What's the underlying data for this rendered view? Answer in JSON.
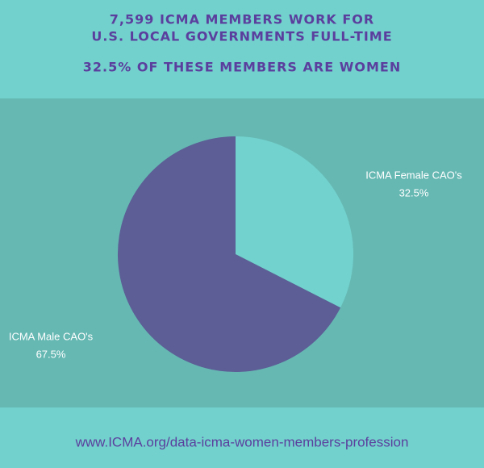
{
  "chart_data": {
    "type": "pie",
    "title": [
      "7,599 ICMA MEMBERS WORK FOR",
      "U.S. LOCAL GOVERNMENTS FULL-TIME"
    ],
    "subtitle": "32.5% OF THESE MEMBERS ARE WOMEN",
    "categories": [
      "ICMA Female CAO's",
      "ICMA Male CAO's"
    ],
    "values": [
      32.5,
      67.5
    ],
    "value_labels": [
      "32.5%",
      "67.5%"
    ],
    "colors": [
      "#72d2cd",
      "#5c5e95"
    ],
    "footer": "www.ICMA.org/data-icma-women-members-profession"
  }
}
